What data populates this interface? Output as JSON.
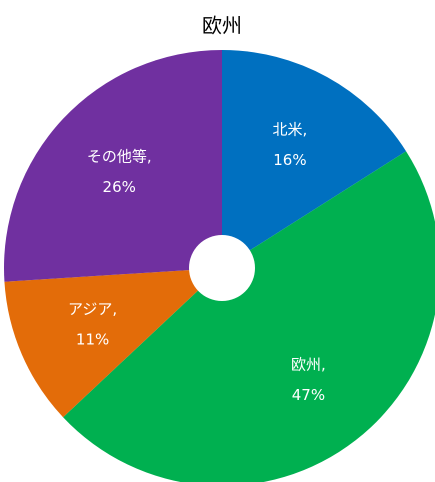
{
  "chart_data": {
    "type": "pie",
    "title": "欧州",
    "categories": [
      "北米",
      "欧州",
      "アジア",
      "その他等"
    ],
    "values": [
      16,
      47,
      11,
      26
    ],
    "value_labels": [
      "16%",
      "47%",
      "11%",
      "26%"
    ],
    "label_separator": ",",
    "colors": [
      "#0070c0",
      "#00b050",
      "#e36c09",
      "#7030a0"
    ],
    "donut_hole": true
  }
}
